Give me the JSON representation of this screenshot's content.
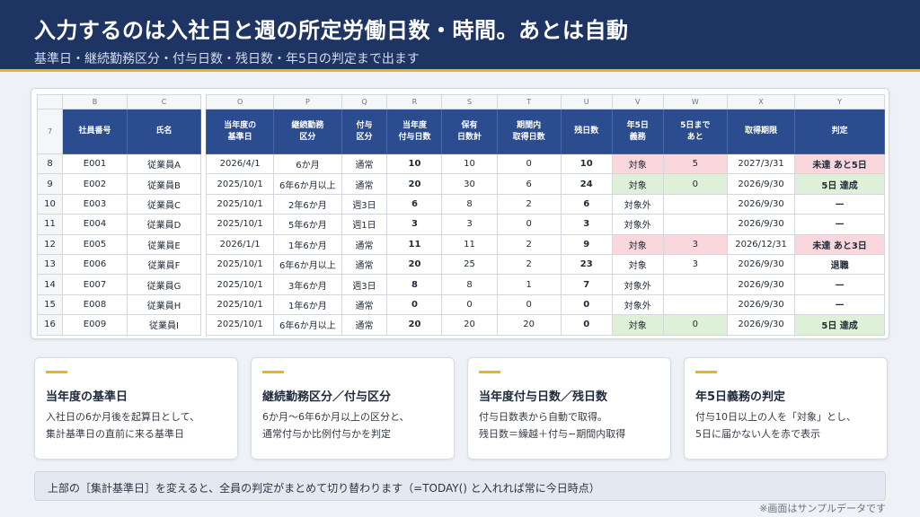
{
  "header": {
    "title": "入力するのは入社日と週の所定労働日数・時間。あとは自動",
    "subtitle": "基準日・継続勤務区分・付与日数・残日数・年5日の判定まで出ます"
  },
  "sheet": {
    "left_col_letters": [
      "B",
      "C"
    ],
    "right_col_letters": [
      "O",
      "P",
      "Q",
      "R",
      "S",
      "T",
      "U",
      "V",
      "W",
      "X",
      "Y"
    ],
    "header_row_number": "7",
    "left_headers": [
      "社員番号",
      "氏名"
    ],
    "right_headers": [
      "当年度の\n基準日",
      "継続勤務\n区分",
      "付与\n区分",
      "当年度\n付与日数",
      "保有\n日数計",
      "期間内\n取得日数",
      "残日数",
      "年5日\n義務",
      "5日まで\nあと",
      "取得期限",
      "判定"
    ],
    "rows": [
      {
        "rn": "8",
        "id": "E001",
        "name": "従業員A",
        "base": "2026/4/1",
        "tenure": "6か月",
        "grant_type": "通常",
        "grant": "10",
        "held": "10",
        "taken": "0",
        "remain": "10",
        "duty": "対象",
        "left": "5",
        "deadline": "2027/3/31",
        "verdict": "未達 あと5日",
        "status": "alert"
      },
      {
        "rn": "9",
        "id": "E002",
        "name": "従業員B",
        "base": "2025/10/1",
        "tenure": "6年6か月以上",
        "grant_type": "通常",
        "grant": "20",
        "held": "30",
        "taken": "6",
        "remain": "24",
        "duty": "対象",
        "left": "0",
        "deadline": "2026/9/30",
        "verdict": "5日 達成",
        "status": "ok"
      },
      {
        "rn": "10",
        "id": "E003",
        "name": "従業員C",
        "base": "2025/10/1",
        "tenure": "2年6か月",
        "grant_type": "週3日",
        "grant": "6",
        "held": "8",
        "taken": "2",
        "remain": "6",
        "duty": "対象外",
        "left": "",
        "deadline": "2026/9/30",
        "verdict": "—",
        "status": "none"
      },
      {
        "rn": "11",
        "id": "E004",
        "name": "従業員D",
        "base": "2025/10/1",
        "tenure": "5年6か月",
        "grant_type": "週1日",
        "grant": "3",
        "held": "3",
        "taken": "0",
        "remain": "3",
        "duty": "対象外",
        "left": "",
        "deadline": "2026/9/30",
        "verdict": "—",
        "status": "none"
      },
      {
        "rn": "12",
        "id": "E005",
        "name": "従業員E",
        "base": "2026/1/1",
        "tenure": "1年6か月",
        "grant_type": "通常",
        "grant": "11",
        "held": "11",
        "taken": "2",
        "remain": "9",
        "duty": "対象",
        "left": "3",
        "deadline": "2026/12/31",
        "verdict": "未達 あと3日",
        "status": "alert"
      },
      {
        "rn": "13",
        "id": "E006",
        "name": "従業員F",
        "base": "2025/10/1",
        "tenure": "6年6か月以上",
        "grant_type": "通常",
        "grant": "20",
        "held": "25",
        "taken": "2",
        "remain": "23",
        "duty": "対象",
        "left": "3",
        "deadline": "2026/9/30",
        "verdict": "退職",
        "status": "none"
      },
      {
        "rn": "14",
        "id": "E007",
        "name": "従業員G",
        "base": "2025/10/1",
        "tenure": "3年6か月",
        "grant_type": "週3日",
        "grant": "8",
        "held": "8",
        "taken": "1",
        "remain": "7",
        "duty": "対象外",
        "left": "",
        "deadline": "2026/9/30",
        "verdict": "—",
        "status": "none"
      },
      {
        "rn": "15",
        "id": "E008",
        "name": "従業員H",
        "base": "2025/10/1",
        "tenure": "1年6か月",
        "grant_type": "通常",
        "grant": "0",
        "held": "0",
        "taken": "0",
        "remain": "0",
        "duty": "対象外",
        "left": "",
        "deadline": "2026/9/30",
        "verdict": "—",
        "status": "none"
      },
      {
        "rn": "16",
        "id": "E009",
        "name": "従業員I",
        "base": "2025/10/1",
        "tenure": "6年6か月以上",
        "grant_type": "通常",
        "grant": "20",
        "held": "20",
        "taken": "20",
        "remain": "0",
        "duty": "対象",
        "left": "0",
        "deadline": "2026/9/30",
        "verdict": "5日 達成",
        "status": "ok"
      }
    ]
  },
  "cards": [
    {
      "title": "当年度の基準日",
      "lines": [
        "入社日の6か月後を起算日として、",
        "集計基準日の直前に来る基準日"
      ]
    },
    {
      "title": "継続勤務区分／付与区分",
      "lines": [
        "6か月〜6年6か月以上の区分と、",
        "通常付与か比例付与かを判定"
      ]
    },
    {
      "title": "当年度付与日数／残日数",
      "lines": [
        "付与日数表から自動で取得。",
        "残日数＝繰越＋付与−期間内取得"
      ]
    },
    {
      "title": "年5日義務の判定",
      "lines": [
        "付与10日以上の人を「対象」とし、",
        "5日に届かない人を赤で表示"
      ]
    }
  ],
  "note": "上部の［集計基準日］を変えると、全員の判定がまとめて切り替わります（=TODAY() と入れれば常に今日時点）",
  "footer": "※画面はサンプルデータです",
  "colors": {
    "header_bg": "#1e3463",
    "accent": "#e7b523",
    "table_header": "#2b4c8e",
    "alert": "#fad7dc",
    "ok": "#dff0d8"
  }
}
